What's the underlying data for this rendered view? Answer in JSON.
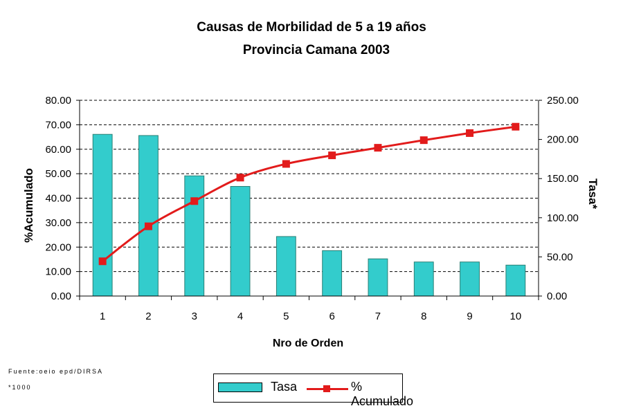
{
  "chart_data": {
    "type": "bar+line",
    "title": "Causas de Morbilidad de 5 a 19 años",
    "subtitle": "Provincia Camana 2003",
    "xlabel": "Nro de Orden",
    "ylabel_left": "%Acumulado",
    "ylabel_right": "Tasa*",
    "categories": [
      "1",
      "2",
      "3",
      "4",
      "5",
      "6",
      "7",
      "8",
      "9",
      "10"
    ],
    "series": [
      {
        "name": "Tasa",
        "type": "bar",
        "axis": "right",
        "values": [
          206.5,
          205,
          153.5,
          140,
          76,
          58,
          47.5,
          43.5,
          43.5,
          39.5
        ],
        "color": "#33CCCC"
      },
      {
        "name": "% Acumulado",
        "type": "line",
        "axis": "left",
        "values": [
          14.2,
          28.5,
          38.8,
          48.4,
          54,
          57.5,
          60.6,
          63.7,
          66.6,
          69.2
        ],
        "color": "#E21B1B"
      }
    ],
    "ylim_left": [
      0,
      80
    ],
    "yticks_left": [
      "0.00",
      "10.00",
      "20.00",
      "30.00",
      "40.00",
      "50.00",
      "60.00",
      "70.00",
      "80.00"
    ],
    "ylim_right": [
      0,
      250
    ],
    "yticks_right": [
      "0.00",
      "50.00",
      "100.00",
      "150.00",
      "200.00",
      "250.00"
    ],
    "grid": "horizontal dashed",
    "legend_position": "bottom"
  },
  "footnotes": {
    "source": "Fuente:oeio epd/DIRSA",
    "unit": "*1000"
  }
}
